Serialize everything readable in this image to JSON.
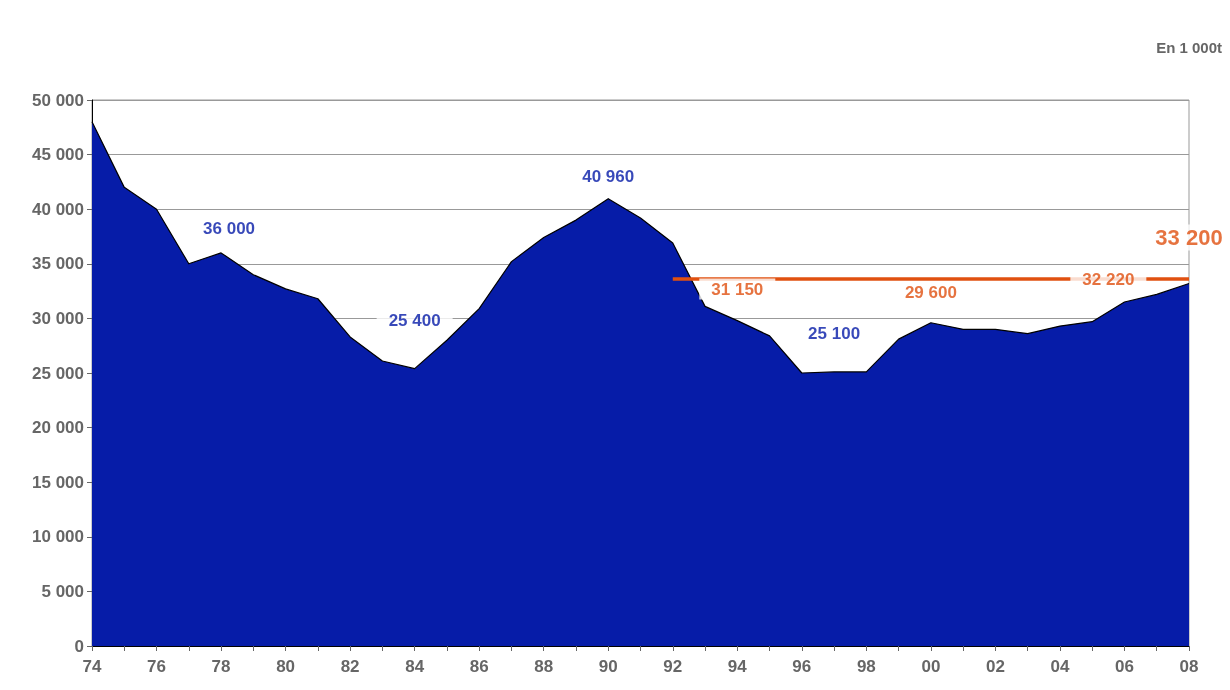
{
  "chart_data": {
    "type": "area",
    "ylabel": "En 1 000t",
    "x": [
      1974,
      1975,
      1976,
      1977,
      1978,
      1979,
      1980,
      1981,
      1982,
      1983,
      1984,
      1985,
      1986,
      1987,
      1988,
      1989,
      1990,
      1991,
      1992,
      1993,
      1994,
      1995,
      1996,
      1997,
      1998,
      1999,
      2000,
      2001,
      2002,
      2003,
      2004,
      2005,
      2006,
      2007,
      2008
    ],
    "series": [
      {
        "color": "#061ca8",
        "values": [
          48000,
          42000,
          40000,
          35000,
          36000,
          34000,
          32700,
          31800,
          28300,
          26100,
          25400,
          28000,
          30900,
          35200,
          37400,
          39000,
          40960,
          39200,
          36900,
          31100,
          29800,
          28400,
          25000,
          25100,
          25100,
          28100,
          29600,
          29000,
          29000,
          28600,
          29300,
          29700,
          31500,
          32200,
          33200
        ]
      },
      {
        "type": "line",
        "color": "#e05010",
        "x": [
          1992,
          2008
        ],
        "values": [
          33600,
          33600
        ]
      }
    ],
    "annotations": [
      {
        "text": "36 000",
        "x": 1978,
        "y": 36000
      },
      {
        "text": "25 400",
        "x": 1984,
        "y": 25400
      },
      {
        "text": "40 960",
        "x": 1990,
        "y": 40960
      },
      {
        "text": "25 100",
        "x": 1997,
        "y": 25100
      },
      {
        "text": "31 150",
        "x": 1994,
        "y": 33600
      },
      {
        "text": "29 600",
        "x": 2000,
        "y": 29600
      },
      {
        "text": "32 220",
        "x": 2005.5,
        "y": 33600
      },
      {
        "text": "33 200",
        "x": 2008,
        "y": 33200
      }
    ],
    "xlim": [
      1974,
      2008
    ],
    "xticks": [
      {
        "value": 1974,
        "label": "74"
      },
      {
        "value": 1975,
        "label": null
      },
      {
        "value": 1976,
        "label": "76"
      },
      {
        "value": 1977,
        "label": null
      },
      {
        "value": 1978,
        "label": "78"
      },
      {
        "value": 1979,
        "label": null
      },
      {
        "value": 1980,
        "label": "80"
      },
      {
        "value": 1981,
        "label": null
      },
      {
        "value": 1982,
        "label": "82"
      },
      {
        "value": 1983,
        "label": null
      },
      {
        "value": 1984,
        "label": "84"
      },
      {
        "value": 1985,
        "label": null
      },
      {
        "value": 1986,
        "label": "86"
      },
      {
        "value": 1987,
        "label": null
      },
      {
        "value": 1988,
        "label": "88"
      },
      {
        "value": 1989,
        "label": null
      },
      {
        "value": 1990,
        "label": "90"
      },
      {
        "value": 1991,
        "label": null
      },
      {
        "value": 1992,
        "label": "92"
      },
      {
        "value": 1993,
        "label": null
      },
      {
        "value": 1994,
        "label": "94"
      },
      {
        "value": 1995,
        "label": null
      },
      {
        "value": 1996,
        "label": "96"
      },
      {
        "value": 1997,
        "label": null
      },
      {
        "value": 1998,
        "label": "98"
      },
      {
        "value": 1999,
        "label": null
      },
      {
        "value": 2000,
        "label": "00"
      },
      {
        "value": 2001,
        "label": null
      },
      {
        "value": 2002,
        "label": "02"
      },
      {
        "value": 2003,
        "label": null
      },
      {
        "value": 2004,
        "label": "04"
      },
      {
        "value": 2005,
        "label": null
      },
      {
        "value": 2006,
        "label": "06"
      },
      {
        "value": 2007,
        "label": null
      },
      {
        "value": 2008,
        "label": "08"
      }
    ],
    "ylim": [
      0,
      50000
    ],
    "yticks": [
      {
        "value": 0,
        "label": "0"
      },
      {
        "value": 5000,
        "label": "5 000"
      },
      {
        "value": 10000,
        "label": "10 000"
      },
      {
        "value": 15000,
        "label": "15 000"
      },
      {
        "value": 20000,
        "label": "20 000"
      },
      {
        "value": 25000,
        "label": "25 000"
      },
      {
        "value": 30000,
        "label": "30 000"
      },
      {
        "value": 35000,
        "label": "35 000"
      },
      {
        "value": 40000,
        "label": "40 000"
      },
      {
        "value": 45000,
        "label": "45 000"
      },
      {
        "value": 50000,
        "label": "50 000"
      }
    ],
    "grid": "y",
    "marker": "none"
  }
}
